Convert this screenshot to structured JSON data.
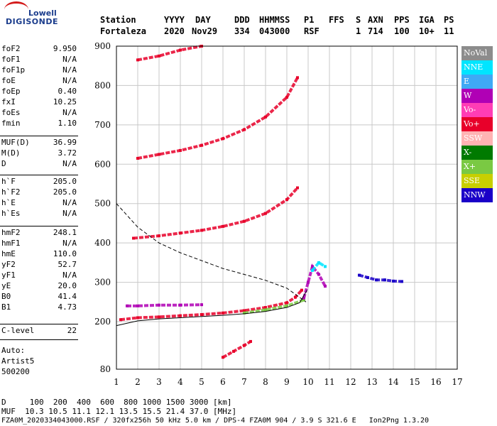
{
  "logo": {
    "brand": "Lowell",
    "product": "DIGISONDE"
  },
  "header": {
    "labels": [
      "Station",
      "YYYY",
      "DAY",
      "DDD",
      "HHMMSS",
      "P1",
      "FFS",
      "S",
      "AXN",
      "PPS",
      "IGA",
      "PS"
    ],
    "values": [
      "Fortaleza",
      "2020",
      "Nov29",
      "334",
      "043000",
      "RSF",
      "1",
      "714",
      "100",
      "10+",
      "11"
    ]
  },
  "side_params": [
    {
      "label": "foF2",
      "value": "9.950"
    },
    {
      "label": "foF1",
      "value": "N/A"
    },
    {
      "label": "foF1p",
      "value": "N/A"
    },
    {
      "label": "foE",
      "value": "N/A"
    },
    {
      "label": "foEp",
      "value": "0.40"
    },
    {
      "label": "fxI",
      "value": "10.25"
    },
    {
      "label": "foEs",
      "value": "N/A"
    },
    {
      "label": "fmin",
      "value": "1.10"
    },
    {
      "label": "MUF(D)",
      "value": "36.99"
    },
    {
      "label": "M(D)",
      "value": "3.72"
    },
    {
      "label": "D",
      "value": "N/A"
    },
    {
      "label": "h`F",
      "value": "205.0"
    },
    {
      "label": "h`F2",
      "value": "205.0"
    },
    {
      "label": "h`E",
      "value": "N/A"
    },
    {
      "label": "h`Es",
      "value": "N/A"
    },
    {
      "label": "hmF2",
      "value": "248.1"
    },
    {
      "label": "hmF1",
      "value": "N/A"
    },
    {
      "label": "hmE",
      "value": "110.0"
    },
    {
      "label": "yF2",
      "value": "52.7"
    },
    {
      "label": "yF1",
      "value": "N/A"
    },
    {
      "label": "yE",
      "value": "20.0"
    },
    {
      "label": "B0",
      "value": "41.4"
    },
    {
      "label": "B1",
      "value": "4.73"
    },
    {
      "label": "C-level",
      "value": "22"
    }
  ],
  "auto": [
    "Auto:",
    "Artist5",
    "500200"
  ],
  "legend": [
    {
      "label": "NoVal",
      "color": "#8c8c8c"
    },
    {
      "label": "NNE",
      "color": "#00e5ff"
    },
    {
      "label": "E",
      "color": "#3fa9f5"
    },
    {
      "label": "W",
      "color": "#b000b5"
    },
    {
      "label": "Vo-",
      "color": "#ff3db5"
    },
    {
      "label": "Vo+",
      "color": "#e8002a"
    },
    {
      "label": "SSW",
      "color": "#ffb3b3"
    },
    {
      "label": "X-",
      "color": "#007a00"
    },
    {
      "label": "X+",
      "color": "#7ac943"
    },
    {
      "label": "SSE",
      "color": "#c8cf00"
    },
    {
      "label": "NNW",
      "color": "#1a00c8"
    }
  ],
  "footer": {
    "line1": "D     100  200  400  600  800 1000 1500 3000 [km]",
    "line2": "MUF  10.3 10.5 11.1 12.1 13.5 15.5 21.4 37.0 [MHz]",
    "line3": "FZA0M_2020334043000.RSF / 320fx256h 50 kHz 5.0 km / DPS-4 FZA0M 904 / 3.9 S 321.6 E   Ion2Png 1.3.20"
  },
  "chart_data": {
    "type": "scatter",
    "x_ticks": [
      1,
      2,
      3,
      4,
      5,
      6,
      7,
      8,
      9,
      10,
      11,
      12,
      13,
      14,
      15,
      16,
      17
    ],
    "y_ticks": [
      80,
      200,
      300,
      400,
      500,
      600,
      700,
      800,
      900
    ],
    "xlim": [
      1,
      17
    ],
    "ylim": [
      80,
      900
    ],
    "grid": true,
    "traces": [
      {
        "color": "#e8002a",
        "x": [
          1.2,
          2.0,
          3.0,
          4.0,
          5.0,
          6.0,
          7.0,
          8.0,
          9.0,
          9.4,
          9.7
        ],
        "y": [
          205,
          210,
          212,
          215,
          218,
          222,
          228,
          236,
          248,
          262,
          280
        ]
      },
      {
        "color": "#b000b5",
        "x": [
          1.5,
          2.0,
          3.0,
          4.0,
          5.0
        ],
        "y": [
          240,
          240,
          242,
          242,
          243
        ]
      },
      {
        "color": "#e8002a",
        "x": [
          1.8,
          3.0,
          4.0,
          5.0,
          6.0,
          7.0,
          8.0,
          9.0,
          9.5
        ],
        "y": [
          412,
          418,
          425,
          432,
          442,
          455,
          475,
          510,
          540
        ]
      },
      {
        "color": "#e8002a",
        "x": [
          2.0,
          3.0,
          4.0,
          5.0,
          6.0,
          7.0,
          8.0,
          9.0,
          9.5
        ],
        "y": [
          615,
          625,
          635,
          648,
          665,
          688,
          720,
          770,
          820
        ]
      },
      {
        "color": "#e8002a",
        "x": [
          2.0,
          3.0,
          4.0,
          5.0
        ],
        "y": [
          865,
          875,
          890,
          900
        ]
      },
      {
        "color": "#7ac943",
        "x": [
          7.0,
          8.0,
          9.0,
          9.8
        ],
        "y": [
          222,
          230,
          240,
          255
        ]
      },
      {
        "color": "#b000b5",
        "x": [
          9.8,
          10.0,
          10.2,
          10.5,
          10.8
        ],
        "y": [
          260,
          300,
          340,
          320,
          290
        ]
      },
      {
        "color": "#00e5ff",
        "x": [
          10.2,
          10.5,
          10.8
        ],
        "y": [
          330,
          350,
          340
        ]
      },
      {
        "color": "#1a00c8",
        "x": [
          12.4,
          12.8,
          13.2,
          13.6,
          14.0,
          14.4
        ],
        "y": [
          318,
          312,
          306,
          306,
          303,
          302
        ]
      },
      {
        "color": "#e8002a",
        "x": [
          6.0,
          6.5,
          7.0,
          7.3
        ],
        "y": [
          110,
          125,
          140,
          150
        ]
      }
    ],
    "profile_solid": {
      "x": [
        1.0,
        2.0,
        3.0,
        4.0,
        5.0,
        6.0,
        7.0,
        8.0,
        9.0,
        9.6,
        9.95
      ],
      "y": [
        190,
        202,
        207,
        210,
        213,
        216,
        220,
        226,
        236,
        248,
        280
      ]
    },
    "profile_dashed": {
      "x": [
        1.0,
        2.0,
        3.0,
        4.0,
        5.0,
        6.0,
        7.0,
        8.0,
        9.0,
        9.9
      ],
      "y": [
        500,
        440,
        400,
        375,
        355,
        335,
        320,
        305,
        285,
        250
      ]
    }
  }
}
